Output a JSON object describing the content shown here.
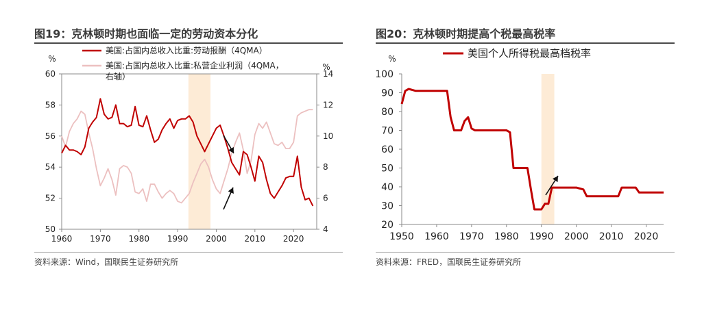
{
  "charts": {
    "left": {
      "title": "图19：克林顿时期也面临一定的劳动资本分化",
      "source": "资料来源：Wind，国联民生证券研究所"
    },
    "right": {
      "title": "图20：克林顿时期提高个税最高税率",
      "source": "资料来源：FRED，国联民生证券研究所"
    }
  },
  "chart_data": [
    {
      "type": "line",
      "title": "图19：克林顿时期也面临一定的劳动资本分化",
      "left_axis_unit": "%",
      "right_axis_unit": "%",
      "xlim": [
        1960,
        2026
      ],
      "x_ticks": [
        "1960",
        "1970",
        "1980",
        "1990",
        "2000",
        "2010",
        "2020"
      ],
      "ylim_left": [
        50,
        60
      ],
      "y_ticks_left": [
        "50",
        "52",
        "54",
        "56",
        "58",
        "60"
      ],
      "ylim_right": [
        4,
        14
      ],
      "y_ticks_right": [
        "4",
        "6",
        "8",
        "10",
        "12",
        "14"
      ],
      "shaded_range": [
        1992.8,
        1998.5
      ],
      "grid": false,
      "legend_position": "top",
      "series": [
        {
          "name": "美国:占国内总收入比重:劳动报酬（4QMA）",
          "axis": "left",
          "color": "#c00000",
          "x": [
            1960,
            1961,
            1962,
            1963,
            1964,
            1965,
            1966,
            1967,
            1968,
            1969,
            1970,
            1971,
            1972,
            1973,
            1974,
            1975,
            1976,
            1977,
            1978,
            1979,
            1980,
            1981,
            1982,
            1983,
            1984,
            1985,
            1986,
            1987,
            1988,
            1989,
            1990,
            1991,
            1992,
            1993,
            1994,
            1995,
            1996,
            1997,
            1998,
            1999,
            2000,
            2001,
            2002,
            2003,
            2004,
            2005,
            2006,
            2007,
            2008,
            2009,
            2010,
            2011,
            2012,
            2013,
            2014,
            2015,
            2016,
            2017,
            2018,
            2019,
            2020,
            2021,
            2022,
            2023,
            2024,
            2025
          ],
          "y": [
            54.9,
            55.4,
            55.1,
            55.1,
            55.0,
            54.8,
            55.3,
            56.5,
            56.9,
            57.2,
            58.4,
            57.4,
            57.1,
            57.2,
            58.0,
            56.8,
            56.8,
            56.6,
            56.7,
            57.9,
            56.7,
            56.6,
            57.3,
            56.4,
            55.6,
            55.8,
            56.4,
            56.8,
            57.1,
            56.5,
            57.0,
            57.1,
            57.1,
            57.3,
            56.9,
            56.0,
            55.5,
            55.0,
            55.5,
            56.0,
            56.5,
            56.7,
            56.0,
            55.2,
            54.3,
            53.9,
            53.5,
            55.0,
            54.8,
            54.0,
            53.1,
            54.7,
            54.3,
            53.2,
            52.3,
            52.0,
            52.4,
            52.8,
            53.3,
            53.4,
            53.4,
            54.7,
            52.7,
            51.9,
            52.0,
            51.5
          ]
        },
        {
          "name": "美国:占国内总收入比重:私营企业利润（4QMA，右轴）",
          "axis": "right",
          "color": "#ecc0c0",
          "x": [
            1960,
            1961,
            1962,
            1963,
            1964,
            1965,
            1966,
            1967,
            1968,
            1969,
            1970,
            1971,
            1972,
            1973,
            1974,
            1975,
            1976,
            1977,
            1978,
            1979,
            1980,
            1981,
            1982,
            1983,
            1984,
            1985,
            1986,
            1987,
            1988,
            1989,
            1990,
            1991,
            1992,
            1993,
            1994,
            1995,
            1996,
            1997,
            1998,
            1999,
            2000,
            2001,
            2002,
            2003,
            2004,
            2005,
            2006,
            2007,
            2008,
            2009,
            2010,
            2011,
            2012,
            2013,
            2014,
            2015,
            2016,
            2017,
            2018,
            2019,
            2020,
            2021,
            2022,
            2023,
            2024,
            2025
          ],
          "y": [
            10.0,
            9.3,
            10.3,
            10.8,
            11.1,
            11.6,
            11.4,
            10.2,
            9.2,
            7.9,
            6.8,
            7.3,
            7.9,
            7.2,
            6.2,
            7.9,
            8.1,
            8.0,
            7.6,
            6.4,
            6.3,
            6.6,
            5.8,
            6.9,
            6.9,
            6.4,
            6.0,
            6.3,
            6.5,
            6.3,
            5.8,
            5.7,
            6.0,
            6.3,
            7.0,
            7.6,
            8.2,
            8.5,
            8.0,
            7.2,
            6.6,
            6.3,
            7.1,
            7.9,
            8.9,
            9.6,
            10.2,
            9.1,
            7.6,
            8.4,
            10.1,
            10.8,
            10.5,
            10.9,
            10.2,
            9.5,
            9.4,
            9.6,
            9.2,
            9.2,
            9.6,
            11.3,
            11.5,
            11.6,
            11.7,
            11.7
          ]
        }
      ]
    },
    {
      "type": "line",
      "title": "图20：克林顿时期提高个税最高税率",
      "y_axis_unit": "%",
      "xlim": [
        1950,
        2025
      ],
      "x_ticks": [
        "1950",
        "1960",
        "1970",
        "1980",
        "1990",
        "2000",
        "2010",
        "2020"
      ],
      "ylim": [
        20,
        100
      ],
      "y_ticks": [
        "20",
        "30",
        "40",
        "50",
        "60",
        "70",
        "80",
        "90",
        "100"
      ],
      "shaded_range": [
        1990,
        1993.7
      ],
      "grid": false,
      "legend_position": "top",
      "series": [
        {
          "name": "美国个人所得税最高档税率",
          "color": "#c00000",
          "x": [
            1950,
            1951,
            1952,
            1954,
            1963,
            1964,
            1965,
            1967,
            1968,
            1969,
            1970,
            1971,
            1980,
            1981,
            1982,
            1986,
            1987,
            1988,
            1990,
            1991,
            1992,
            1993,
            1994,
            2000,
            2001,
            2002,
            2003,
            2012,
            2013,
            2017,
            2018,
            2025
          ],
          "y": [
            84,
            91,
            92,
            91,
            91,
            77,
            70,
            70,
            75,
            77,
            71,
            70,
            70,
            69,
            50,
            50,
            38.5,
            28,
            28,
            31,
            31,
            39.6,
            39.6,
            39.6,
            39.1,
            38.6,
            35,
            35,
            39.6,
            39.6,
            37,
            37
          ]
        }
      ]
    }
  ]
}
